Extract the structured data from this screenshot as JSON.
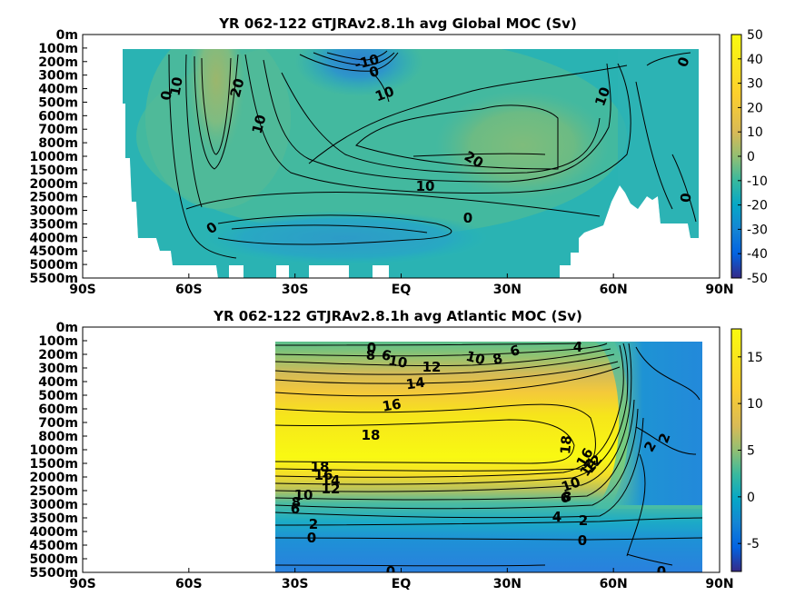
{
  "chart_data": [
    {
      "type": "heatmap",
      "title": "YR 062-122 GTJRAv2.8.1h avg  Global MOC (Sv)",
      "xlabel": "",
      "ylabel": "",
      "x_ticks": [
        "90S",
        "60S",
        "30S",
        "EQ",
        "30N",
        "60N",
        "90N"
      ],
      "x_tick_values": [
        -90,
        -60,
        -30,
        0,
        30,
        60,
        90
      ],
      "y_ticks": [
        "0m",
        "100m",
        "200m",
        "300m",
        "400m",
        "500m",
        "600m",
        "700m",
        "800m",
        "1000m",
        "1500m",
        "2000m",
        "2500m",
        "3000m",
        "3500m",
        "4000m",
        "4500m",
        "5000m",
        "5500m"
      ],
      "colorbar": {
        "ticks": [
          "50",
          "40",
          "30",
          "20",
          "10",
          "0",
          "-10",
          "-20",
          "-30",
          "-40",
          "-50"
        ],
        "tick_values": [
          50,
          40,
          30,
          20,
          10,
          0,
          -10,
          -20,
          -30,
          -40,
          -50
        ],
        "range": [
          -50,
          50
        ],
        "colormap": "parula"
      },
      "contour_labels": [
        "-10",
        "0",
        "10",
        "20",
        "10",
        "0",
        "10",
        "10",
        "20",
        "10",
        "0",
        "0",
        "0",
        "0"
      ],
      "contour_label_values": [
        -10,
        0,
        10,
        20,
        10,
        0,
        10,
        10,
        20,
        10,
        0,
        0,
        0,
        0
      ]
    },
    {
      "type": "heatmap",
      "title": "YR 062-122 GTJRAv2.8.1h avg  Atlantic MOC (Sv)",
      "xlabel": "",
      "ylabel": "",
      "x_ticks": [
        "90S",
        "60S",
        "30S",
        "EQ",
        "30N",
        "60N",
        "90N"
      ],
      "x_tick_values": [
        -90,
        -60,
        -30,
        0,
        30,
        60,
        90
      ],
      "y_ticks": [
        "0m",
        "100m",
        "200m",
        "300m",
        "400m",
        "500m",
        "600m",
        "700m",
        "800m",
        "1000m",
        "1500m",
        "2000m",
        "2500m",
        "3000m",
        "3500m",
        "4000m",
        "4500m",
        "5000m",
        "5500m"
      ],
      "colorbar": {
        "ticks": [
          "15",
          "10",
          "5",
          "0",
          "-5"
        ],
        "tick_values": [
          15,
          10,
          5,
          0,
          -5
        ],
        "range": [
          -8,
          18
        ],
        "colormap": "parula"
      },
      "contour_labels": [
        "0",
        "6",
        "8",
        "10",
        "12",
        "14",
        "16",
        "18",
        "10",
        "8",
        "6",
        "4",
        "18",
        "16",
        "14",
        "12",
        "10",
        "8",
        "6",
        "4",
        "2",
        "18",
        "16",
        "14",
        "12",
        "10",
        "8",
        "6",
        "2",
        "0",
        "0",
        "0",
        "0",
        "2",
        "2"
      ],
      "contour_label_values": [
        0,
        6,
        8,
        10,
        12,
        14,
        16,
        18,
        10,
        8,
        6,
        4,
        18,
        16,
        14,
        12,
        10,
        8,
        6,
        4,
        2,
        18,
        16,
        14,
        12,
        10,
        8,
        6,
        2,
        0,
        0,
        0,
        0,
        2,
        2
      ]
    }
  ]
}
